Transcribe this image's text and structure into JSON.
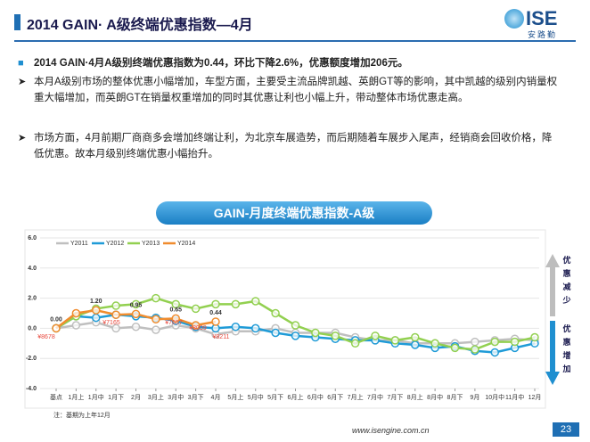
{
  "slide": {
    "title": "2014 GAIN· A级终端优惠指数—4月",
    "logo": "ISE",
    "logo_sub": "安路勤",
    "bullets": [
      "2014 GAIN·4月A级别终端优惠指数为0.44，环比下降2.6%，优惠额度增加206元。",
      "本月A级别市场的整体优惠小幅增加，车型方面，主要受主流品牌凯越、英朗GT等的影响，其中凯越的级别内销量权重大幅增加，而英朗GT在销量权重增加的同时其优惠让利也小幅上升，带动整体市场优惠走高。",
      "市场方面，4月前期厂商商多会增加终端让利，为北京车展造势，而后期随着车展步入尾声，经销商会回收价格，降低优惠。故本月级别终端优惠小幅抬升。"
    ],
    "side_up": "优惠减少",
    "side_down": "优惠增加",
    "note": "注：基期为上年12月",
    "url": "www.isengine.com.cn",
    "page": "23"
  },
  "chart_data": {
    "type": "line",
    "title": "GAIN-月度终端优惠指数-A级",
    "categories": [
      "基点",
      "1月上",
      "1月中",
      "1月下",
      "2月",
      "3月上",
      "3月中",
      "3月下",
      "4月",
      "5月上",
      "5月中",
      "5月下",
      "6月上",
      "6月中",
      "6月下",
      "7月上",
      "7月中",
      "7月下",
      "8月上",
      "8月中",
      "8月下",
      "9月",
      "10月中",
      "11月中",
      "12月"
    ],
    "series": [
      {
        "name": "Y2011",
        "color": "#bfbfbf",
        "values": [
          0,
          0.2,
          0.4,
          0,
          0.1,
          -0.1,
          0.2,
          0,
          -0.4,
          -0.2,
          -0.2,
          0,
          -0.3,
          -0.3,
          -0.3,
          -0.6,
          -0.8,
          -0.8,
          -1,
          -1,
          -1,
          -0.9,
          -0.8,
          -0.7,
          -0.8
        ]
      },
      {
        "name": "Y2012",
        "color": "#1f9bd7",
        "values": [
          0,
          0.8,
          0.7,
          0.9,
          0.8,
          0.7,
          0.5,
          0.1,
          0,
          0.1,
          0,
          -0.3,
          -0.5,
          -0.6,
          -0.7,
          -0.8,
          -0.8,
          -1,
          -1.1,
          -1.3,
          -1.2,
          -1.5,
          -1.6,
          -1.3,
          -1
        ]
      },
      {
        "name": "Y2013",
        "color": "#92d050",
        "values": [
          0,
          0.8,
          1.3,
          1.5,
          1.6,
          2,
          1.6,
          1.3,
          1.6,
          1.6,
          1.8,
          1,
          0.2,
          -0.3,
          -0.5,
          -1,
          -0.5,
          -0.8,
          -0.6,
          -1,
          -1.3,
          -1.4,
          -0.9,
          -0.9,
          -0.6
        ]
      },
      {
        "name": "Y2014",
        "color": "#f08c2e",
        "values": [
          0,
          1,
          1.2,
          0.9,
          0.95,
          0.6,
          0.65,
          0.2,
          0.44,
          null,
          null,
          null,
          null,
          null,
          null,
          null,
          null,
          null,
          null,
          null,
          null,
          null,
          null,
          null,
          null
        ],
        "value_labels": [
          "0.00",
          null,
          "1.20",
          null,
          "0.95",
          null,
          "0.65",
          null,
          "0.44",
          null,
          null,
          null,
          null,
          null,
          null,
          null,
          null,
          null,
          null,
          null,
          null,
          null,
          null,
          null,
          null
        ]
      }
    ],
    "annotations": [
      "¥8678",
      "¥7165",
      "¥7657",
      "¥8009",
      "¥8211"
    ],
    "ylim": [
      -4,
      6
    ],
    "yticks": [
      {
        "value": -4,
        "label": "-4.0"
      },
      {
        "value": -2,
        "label": "-2.0"
      },
      {
        "value": 0,
        "label": "0.0"
      },
      {
        "value": 2,
        "label": "2.0"
      },
      {
        "value": 4,
        "label": "4.0"
      },
      {
        "value": 6,
        "label": "6.0"
      }
    ],
    "grid": true,
    "legend": "top-left"
  }
}
